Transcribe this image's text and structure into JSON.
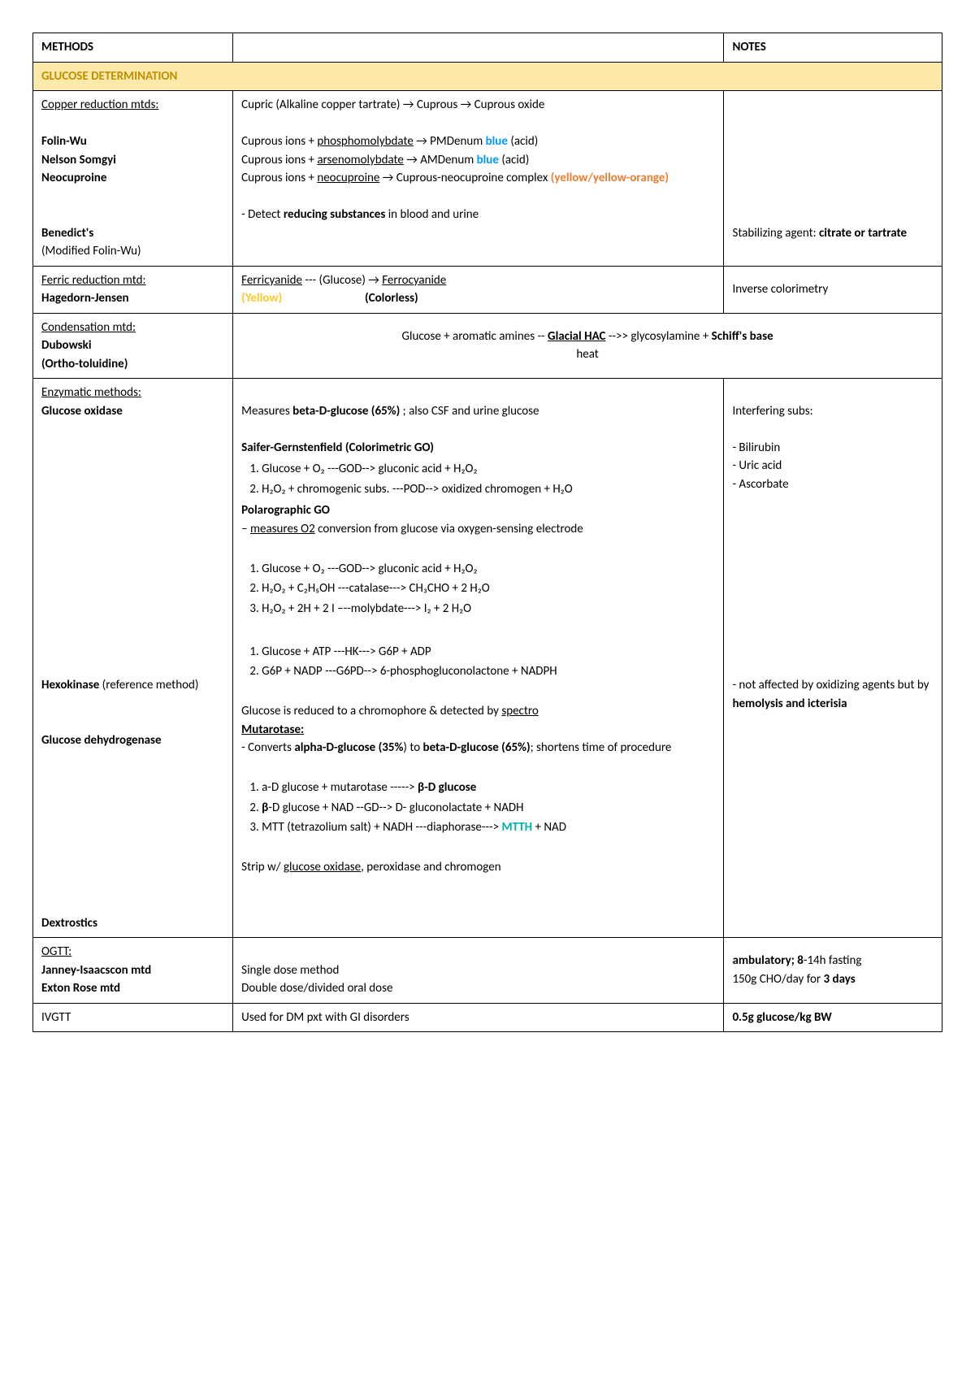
{
  "table": {
    "headers": {
      "methods": "METHODS",
      "notes": "NOTES"
    },
    "section_title": "GLUCOSE DETERMINATION",
    "col_widths": {
      "methods": "22%",
      "desc": "54%",
      "notes": "24%"
    },
    "colors": {
      "section_bg": "#fde9a9",
      "section_text": "#bf8f00",
      "blue": "#0099ff",
      "orange": "#ed7d31",
      "yellow": "#ffca28",
      "teal": "#00b0b0",
      "border": "#000000"
    },
    "rows": {
      "copper": {
        "methods_title": "Copper reduction mtds:",
        "m1": "Folin-Wu",
        "m2": "Nelson Somgyi",
        "m3": "Neocuproine",
        "m4": "Benedict's",
        "m4_sub": "(Modified Folin-Wu)",
        "desc_line1": "Cupric (Alkaline copper tartrate)  →  Cuprous  →  Cuprous oxide",
        "desc_folin_pre": "Cuprous ions + ",
        "desc_folin_ul": "phosphomolybdate",
        "desc_folin_post": " → PMDenum ",
        "desc_folin_blue": "blue",
        "desc_folin_end": " (acid)",
        "desc_nelson_pre": "Cuprous ions + ",
        "desc_nelson_ul": "arsenomolybdate",
        "desc_nelson_post": " → AMDenum ",
        "desc_nelson_blue": "blue",
        "desc_nelson_end": " (acid)",
        "desc_neocu_pre": "Cuprous ions + ",
        "desc_neocu_ul": "neocuproine",
        "desc_neocu_post": " → Cuprous-neocuproine complex ",
        "desc_neocu_color": "(yellow/yellow-orange)",
        "desc_benedict": "- Detect ",
        "desc_benedict_b": "reducing substances",
        "desc_benedict_end": " in blood and urine",
        "note_pre": "Stabilizing agent: ",
        "note_b": "citrate or tartrate"
      },
      "ferric": {
        "methods_title": "Ferric reduction mtd:",
        "m1": "Hagedorn-Jensen",
        "desc_line1_a": "Ferricyanide",
        "desc_line1_b": " --- (Glucose) → ",
        "desc_line1_c": "Ferrocyanide",
        "desc_line2_yellow": "(Yellow)",
        "desc_line2_spacer": "                              ",
        "desc_line2_end": "(Colorless)",
        "note": "Inverse colorimetry"
      },
      "condensation": {
        "methods_title": "Condensation mtd:",
        "m1": "Dubowski",
        "m1_sub": "(Ortho-toluidine)",
        "desc_pre": "Glucose + aromatic amines  --  ",
        "desc_ul": "Glacial HAC",
        "desc_post": "  -->>  glycosylamine + ",
        "desc_b": "Schiff's base",
        "desc_line2": "heat"
      },
      "enzymatic": {
        "methods_title": "Enzymatic methods:",
        "m1": "Glucose oxidase",
        "m2": "Hexokinase ",
        "m2_sub": "(reference method)",
        "m3": "Glucose dehydrogenase",
        "m4": "Dextrostics",
        "desc_go_intro_pre": "Measures ",
        "desc_go_intro_b": "beta-D-glucose (65%)",
        "desc_go_intro_post": " ; also CSF and urine glucose",
        "desc_saifer": "Saifer-Gernstenfield (Colorimetric GO)",
        "saifer_r1": "Glucose + O₂     ---GOD-->    gluconic acid + H₂O₂",
        "saifer_r2": "H₂O₂ + chromogenic subs.  ---POD-->  oxidized chromogen + H₂O",
        "desc_polaro": "Polarographic GO",
        "desc_polaro_line_pre": "– ",
        "desc_polaro_line_ul": "measures O2",
        "desc_polaro_line_post": " conversion from glucose via oxygen-sensing electrode",
        "polaro_r1": "Glucose + O₂     ---GOD-->    gluconic acid + H₂O₂",
        "polaro_r2": "H₂O₂ + C₂H₅OH   ---catalase--->  CH₃CHO + 2 H₂O",
        "polaro_r3": "H₂O₂ + 2H + 2 I   –--molybdate--->  I₂ + 2 H₂O",
        "hk_r1": "Glucose + ATP  ---HK--->  G6P + ADP",
        "hk_r2": "G6P  +  NADP  ---G6PD-->  6-phosphogluconolactone + NADPH",
        "gd_intro_pre": "Glucose is reduced to a chromophore & detected by ",
        "gd_intro_ul": "spectro",
        "gd_mutarotase": "Mutarotase:",
        "gd_mut_desc_pre": "- Converts ",
        "gd_mut_desc_b1": "alpha-D-glucose (35%",
        "gd_mut_desc_mid": ") to ",
        "gd_mut_desc_b2": "beta-D-glucose (65%)",
        "gd_mut_desc_post": "; shortens time of procedure",
        "gd_r1_pre": "a-D glucose + mutarotase -----> ",
        "gd_r1_b": "β-D glucose",
        "gd_r2_b": "β",
        "gd_r2_post": "-D glucose + NAD  --GD--> D- gluconolactate + NADH",
        "gd_r3_pre": "MTT (tetrazolium salt) + NADH  ---diaphorase--->  ",
        "gd_r3_teal": "MTTH",
        "gd_r3_post": " + NAD",
        "dextro_pre": "Strip w/ ",
        "dextro_ul": "glucose oxidase",
        "dextro_post": ", peroxidase and chromogen",
        "note_interfering": "Interfering subs:",
        "note_i1": "- Bilirubin",
        "note_i2": "- Uric acid",
        "note_i3": "- Ascorbate",
        "note_hk_pre": "- not affected by oxidizing agents but by ",
        "note_hk_b": "hemolysis and icterisia"
      },
      "ogtt": {
        "methods_title": "OGTT:",
        "m1": "Janney-Isaacscon mtd",
        "m2": "Exton Rose mtd",
        "desc_single": "Single dose method",
        "desc_double": "Double dose/divided oral dose",
        "note_pre": "ambulatory; ",
        "note_b1": "8",
        "note_mid1": "-14h fasting",
        "note_line2_pre": "150g CHO/day for ",
        "note_line2_b": "3 days"
      },
      "ivgtt": {
        "methods": "IVGTT",
        "desc": "Used for DM pxt with GI disorders",
        "note": "0.5g glucose/kg BW"
      }
    }
  }
}
